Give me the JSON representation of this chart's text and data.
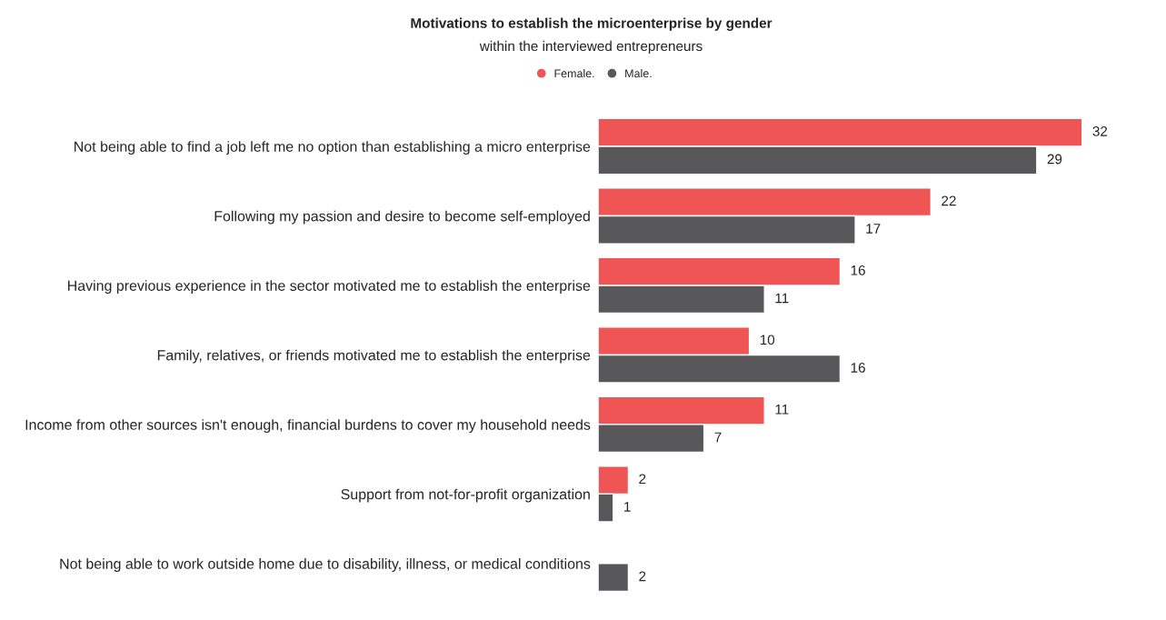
{
  "chart_data": {
    "type": "bar",
    "orientation": "horizontal",
    "title": "Motivations to establish the microenterprise by gender",
    "subtitle": "within the interviewed entrepreneurs",
    "categories": [
      "Not being able to find a job left me no option than establishing a micro enterprise",
      "Following my passion and desire to become self-employed",
      "Having previous experience in the sector motivated me to establish the enterprise",
      "Family, relatives, or friends motivated me to establish the enterprise",
      "Income from other sources isn't enough, financial burdens to cover my household needs",
      "Support from not-for-profit organization",
      "Not being able to work outside home due to disability, illness, or medical conditions"
    ],
    "series": [
      {
        "name": "Female.",
        "color": "#ef5555",
        "values": [
          32,
          22,
          16,
          10,
          11,
          2,
          null
        ]
      },
      {
        "name": "Male.",
        "color": "#58585a",
        "values": [
          29,
          17,
          11,
          16,
          7,
          1,
          2
        ]
      }
    ],
    "data_labels": true,
    "legend": "top",
    "grid": false
  }
}
